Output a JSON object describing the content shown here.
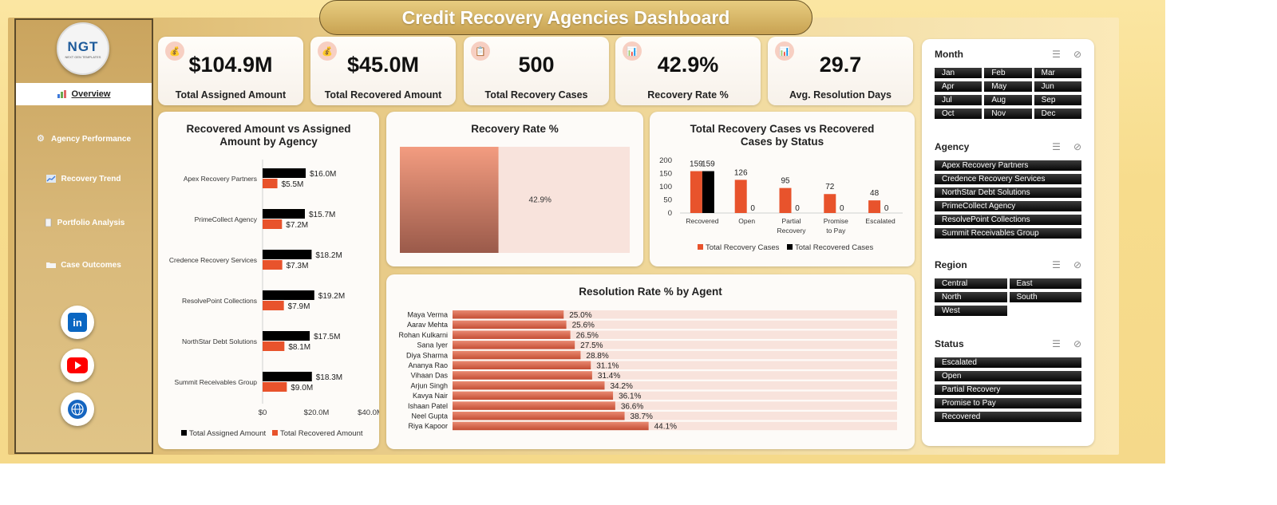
{
  "title": "Credit Recovery Agencies Dashboard",
  "logo": {
    "text": "NGT",
    "tagline": "NEXT GEN TEMPLATES"
  },
  "nav": [
    {
      "label": "Overview",
      "icon": "chart-icon",
      "active": true
    },
    {
      "label": "Agency Performance",
      "icon": "gear-icon",
      "active": false
    },
    {
      "label": "Recovery Trend",
      "icon": "trend-icon",
      "active": false
    },
    {
      "label": "Portfolio Analysis",
      "icon": "document-icon",
      "active": false
    },
    {
      "label": "Case Outcomes",
      "icon": "folder-icon",
      "active": false
    }
  ],
  "social": [
    {
      "name": "linkedin",
      "color": "#0a66c2"
    },
    {
      "name": "youtube",
      "color": "#ff0000"
    },
    {
      "name": "web",
      "color": "#1565c0"
    }
  ],
  "kpis": [
    {
      "value": "$104.9M",
      "label": "Total Assigned Amount",
      "icon": "money-bag-icon"
    },
    {
      "value": "$45.0M",
      "label": "Total Recovered Amount",
      "icon": "money-bag-icon"
    },
    {
      "value": "500",
      "label": "Total Recovery Cases",
      "icon": "clipboard-icon"
    },
    {
      "value": "42.9%",
      "label": "Recovery Rate %",
      "icon": "bar-chart-icon"
    },
    {
      "value": "29.7",
      "label": "Avg. Resolution Days",
      "icon": "bar-chart-icon"
    }
  ],
  "colors": {
    "assigned": "#000000",
    "recovered": "#e8532c",
    "accent": "#e8532c"
  },
  "chart_data": [
    {
      "type": "bar",
      "orientation": "horizontal",
      "title": "Recovered Amount vs Assigned Amount by Agency",
      "categories": [
        "Apex Recovery Partners",
        "PrimeCollect Agency",
        "Credence Recovery Services",
        "ResolvePoint Collections",
        "NorthStar Debt Solutions",
        "Summit Receivables Group"
      ],
      "series": [
        {
          "name": "Total Assigned Amount",
          "values": [
            16.0,
            15.7,
            18.2,
            19.2,
            17.5,
            18.3
          ],
          "labels": [
            "$16.0M",
            "$15.7M",
            "$18.2M",
            "$19.2M",
            "$17.5M",
            "$18.3M"
          ]
        },
        {
          "name": "Total Recovered Amount",
          "values": [
            5.5,
            7.2,
            7.3,
            7.9,
            8.1,
            9.0
          ],
          "labels": [
            "$5.5M",
            "$7.2M",
            "$7.3M",
            "$7.9M",
            "$8.1M",
            "$9.0M"
          ]
        }
      ],
      "xticks": [
        "$0",
        "$20.0M",
        "$40.0M"
      ],
      "xlim": [
        0,
        40
      ],
      "legend": "bottom"
    },
    {
      "type": "bar",
      "title": "Recovery Rate %",
      "values": [
        42.9
      ],
      "labels": [
        "42.9%"
      ],
      "ylim": [
        0,
        100
      ]
    },
    {
      "type": "bar",
      "title": "Total Recovery Cases vs Recovered Cases by Status",
      "categories": [
        "Recovered",
        "Open",
        "Partial Recovery",
        "Promise to Pay",
        "Escalated"
      ],
      "series": [
        {
          "name": "Total Recovery Cases",
          "values": [
            159,
            126,
            95,
            72,
            48
          ]
        },
        {
          "name": "Total Recovered Cases",
          "values": [
            159,
            0,
            0,
            0,
            0
          ]
        }
      ],
      "yticks": [
        "0",
        "50",
        "100",
        "150",
        "200"
      ],
      "ylim": [
        0,
        200
      ],
      "legend": "bottom"
    },
    {
      "type": "bar",
      "orientation": "horizontal",
      "title": "Resolution Rate % by Agent",
      "categories": [
        "Maya Verma",
        "Aarav Mehta",
        "Rohan Kulkarni",
        "Sana Iyer",
        "Diya Sharma",
        "Ananya Rao",
        "Vihaan Das",
        "Arjun Singh",
        "Kavya Nair",
        "Ishaan Patel",
        "Neel Gupta",
        "Riya Kapoor"
      ],
      "values": [
        25.0,
        25.6,
        26.5,
        27.5,
        28.8,
        31.1,
        31.4,
        34.2,
        36.1,
        36.6,
        38.7,
        44.1
      ],
      "labels": [
        "25.0%",
        "25.6%",
        "26.5%",
        "27.5%",
        "28.8%",
        "31.1%",
        "31.4%",
        "34.2%",
        "36.1%",
        "36.6%",
        "38.7%",
        "44.1%"
      ],
      "xlim": [
        0,
        100
      ]
    }
  ],
  "slicers": [
    {
      "title": "Month",
      "cols": 3,
      "items": [
        "Jan",
        "Feb",
        "Mar",
        "Apr",
        "May",
        "Jun",
        "Jul",
        "Aug",
        "Sep",
        "Oct",
        "Nov",
        "Dec"
      ]
    },
    {
      "title": "Agency",
      "cols": 1,
      "items": [
        "Apex Recovery Partners",
        "Credence Recovery Services",
        "NorthStar Debt Solutions",
        "PrimeCollect Agency",
        "ResolvePoint Collections",
        "Summit Receivables Group"
      ]
    },
    {
      "title": "Region",
      "cols": 2,
      "items": [
        "Central",
        "East",
        "North",
        "South",
        "West"
      ]
    },
    {
      "title": "Status",
      "cols": 1,
      "items": [
        "Escalated",
        "Open",
        "Partial Recovery",
        "Promise to Pay",
        "Recovered"
      ]
    }
  ]
}
